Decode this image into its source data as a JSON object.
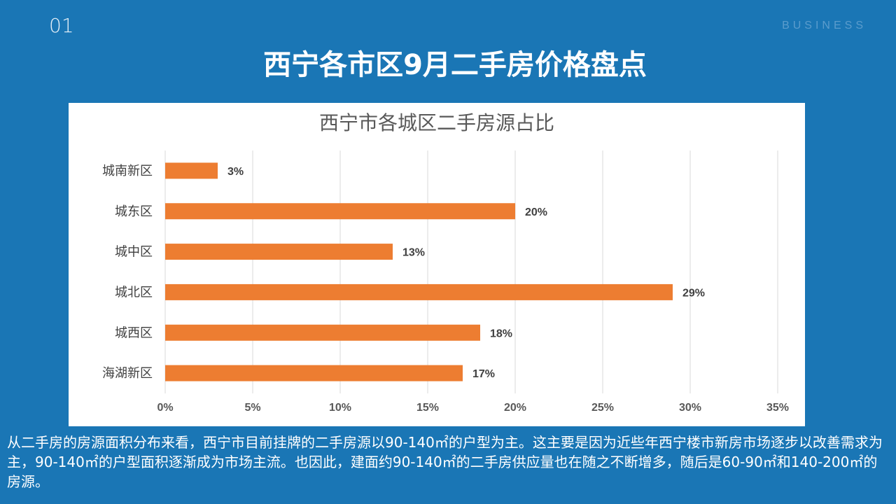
{
  "slide": {
    "number": "01",
    "brand": "BUSINESS",
    "title": "西宁各市区9月二手房价格盘点"
  },
  "chart_data": {
    "type": "bar",
    "orientation": "horizontal",
    "title": "西宁市各城区二手房源占比",
    "categories": [
      "城南新区",
      "城东区",
      "城中区",
      "城北区",
      "城西区",
      "海湖新区"
    ],
    "values": [
      3,
      20,
      13,
      29,
      18,
      17
    ],
    "value_labels": [
      "3%",
      "20%",
      "13%",
      "29%",
      "18%",
      "17%"
    ],
    "xlim": [
      0,
      35
    ],
    "x_ticks": [
      0,
      5,
      10,
      15,
      20,
      25,
      30,
      35
    ],
    "x_tick_labels": [
      "0%",
      "5%",
      "10%",
      "15%",
      "20%",
      "25%",
      "30%",
      "35%"
    ],
    "grid": true,
    "bar_color": "#ed7d31"
  },
  "caption": "从二手房的房源面积分布来看，西宁市目前挂牌的二手房源以90-140㎡的户型为主。这主要是因为近些年西宁楼市新房市场逐步以改善需求为主，90-140㎡的户型面积逐渐成为市场主流。也因此，建面约90-140㎡的二手房供应量也在随之不断增多，随后是60-90㎡和140-200㎡的房源。"
}
